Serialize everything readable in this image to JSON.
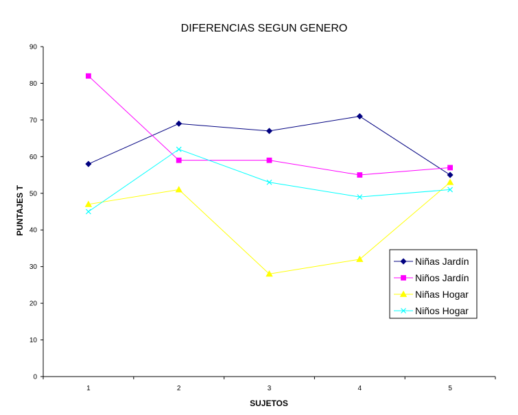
{
  "chart_data": {
    "type": "line",
    "title": "DIFERENCIAS SEGUN GENERO",
    "xlabel": "SUJETOS",
    "ylabel": "PUNTAJES T",
    "categories": [
      "1",
      "2",
      "3",
      "4",
      "5"
    ],
    "ylim": [
      0,
      90
    ],
    "yticks": [
      "0",
      "10",
      "20",
      "30",
      "40",
      "50",
      "60",
      "70",
      "80",
      "90"
    ],
    "grid": false,
    "legend_position": "right",
    "series": [
      {
        "name": "Niñas Jardín",
        "values": [
          58,
          69,
          67,
          71,
          55
        ],
        "color": "#000080",
        "marker": "diamond"
      },
      {
        "name": "Niños Jardín",
        "values": [
          82,
          59,
          59,
          55,
          57
        ],
        "color": "#ff00ff",
        "marker": "square"
      },
      {
        "name": "Niñas Hogar",
        "values": [
          47,
          51,
          28,
          32,
          53
        ],
        "color": "#ffff00",
        "marker": "triangle"
      },
      {
        "name": "Niños Hogar",
        "values": [
          45,
          62,
          53,
          49,
          51
        ],
        "color": "#00ffff",
        "marker": "x"
      }
    ]
  }
}
